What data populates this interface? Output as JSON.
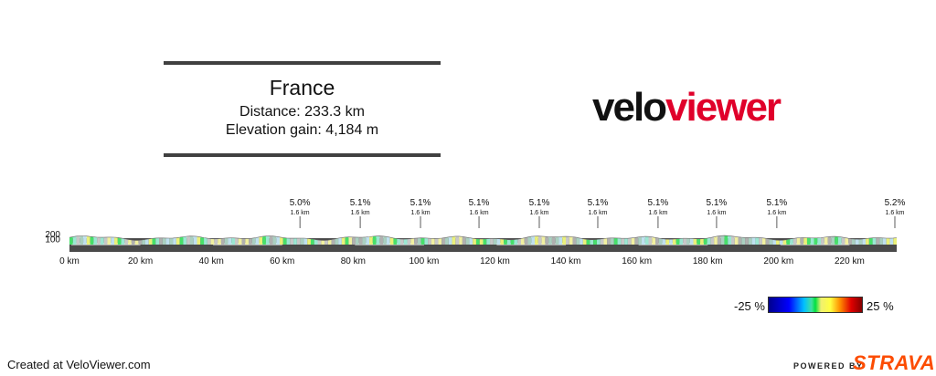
{
  "route": {
    "title": "France",
    "distance": "Distance: 233.3 km",
    "elevation_gain": "Elevation gain: 4,184 m"
  },
  "logo": {
    "part1": "velo",
    "part2": "viewer"
  },
  "footer": {
    "credit": "Created at VeloViewer.com",
    "powered_by": "POWERED BY",
    "strava": "STRAVA"
  },
  "legend": {
    "min_label": "-25 %",
    "max_label": "25 %"
  },
  "colors": {
    "brand_red": "#e0002a",
    "strava_orange": "#fc4c02"
  },
  "chart_data": {
    "type": "area",
    "x_unit": "km",
    "xlim": [
      0,
      233.3
    ],
    "x_ticks": [
      0,
      20,
      40,
      60,
      80,
      100,
      120,
      140,
      160,
      180,
      200,
      220
    ],
    "x_tick_labels": [
      "0 km",
      "20 km",
      "40 km",
      "60 km",
      "80 km",
      "100 km",
      "120 km",
      "140 km",
      "160 km",
      "180 km",
      "200 km",
      "220 km"
    ],
    "y_ticks": [
      100,
      200
    ],
    "y_tick_labels": [
      "100",
      "200"
    ],
    "ylim": [
      0,
      250
    ],
    "total_distance_km": 233.3,
    "elevation_gain_m": 4184,
    "climbs": [
      {
        "km": 65.0,
        "gradient": "5.0%",
        "length": "1.6 km"
      },
      {
        "km": 82.0,
        "gradient": "5.1%",
        "length": "1.6 km"
      },
      {
        "km": 99.0,
        "gradient": "5.1%",
        "length": "1.6 km"
      },
      {
        "km": 115.5,
        "gradient": "5.1%",
        "length": "1.6 km"
      },
      {
        "km": 132.5,
        "gradient": "5.1%",
        "length": "1.6 km"
      },
      {
        "km": 149.0,
        "gradient": "5.1%",
        "length": "1.6 km"
      },
      {
        "km": 166.0,
        "gradient": "5.1%",
        "length": "1.6 km"
      },
      {
        "km": 182.5,
        "gradient": "5.1%",
        "length": "1.6 km"
      },
      {
        "km": 199.5,
        "gradient": "5.1%",
        "length": "1.6 km"
      },
      {
        "km": 233.3,
        "gradient": "5.2%",
        "length": "1.6 km"
      }
    ],
    "color_scale": {
      "min": -25,
      "max": 25,
      "unit": "%"
    }
  }
}
